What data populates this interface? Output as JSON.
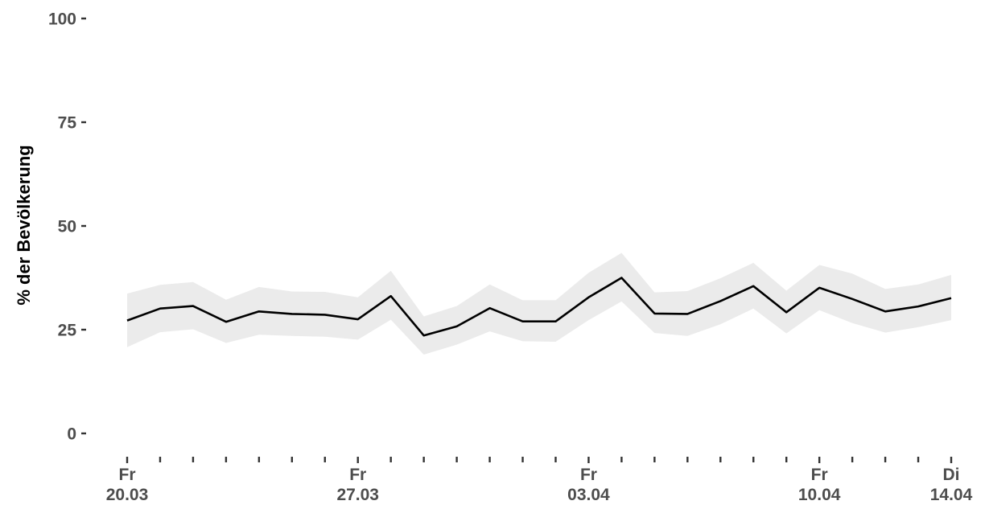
{
  "chart_data": {
    "type": "line",
    "ylabel": "% der Bevölkerung",
    "ylim": [
      0,
      100
    ],
    "y_ticks": [
      "0",
      "25",
      "50",
      "75",
      "100"
    ],
    "x": [
      "20.03",
      "21.03",
      "22.03",
      "23.03",
      "24.03",
      "25.03",
      "26.03",
      "27.03",
      "28.03",
      "29.03",
      "30.03",
      "31.03",
      "01.04",
      "02.04",
      "03.04",
      "04.04",
      "05.04",
      "06.04",
      "07.04",
      "08.04",
      "09.04",
      "10.04",
      "11.04",
      "12.04",
      "13.04",
      "14.04"
    ],
    "x_labels": [
      {
        "day": "Fr",
        "date": "20.03"
      },
      {
        "day": "Fr",
        "date": "27.03"
      },
      {
        "day": "Fr",
        "date": "03.04"
      },
      {
        "day": "Fr",
        "date": "10.04"
      },
      {
        "day": "Di",
        "date": "14.04"
      }
    ],
    "series": [
      {
        "values": [
          27.2,
          30.1,
          30.7,
          26.9,
          29.4,
          28.8,
          28.6,
          27.5,
          33.1,
          23.6,
          25.8,
          30.2,
          27.0,
          27.0,
          32.8,
          37.5,
          28.9,
          28.8,
          31.9,
          35.5,
          29.2,
          35.1,
          32.4,
          29.4,
          30.6,
          32.6
        ],
        "lower": [
          20.8,
          24.4,
          25.1,
          21.8,
          23.8,
          23.5,
          23.3,
          22.6,
          27.4,
          19.0,
          21.4,
          24.6,
          22.2,
          22.1,
          27.3,
          31.8,
          24.2,
          23.5,
          26.3,
          30.1,
          24.1,
          29.7,
          26.6,
          24.3,
          25.6,
          27.3
        ],
        "upper": [
          33.7,
          35.8,
          36.5,
          32.2,
          35.3,
          34.2,
          34.1,
          32.8,
          39.2,
          28.2,
          30.7,
          35.9,
          32.1,
          32.1,
          38.7,
          43.5,
          34.0,
          34.3,
          37.4,
          41.1,
          34.4,
          40.6,
          38.5,
          34.8,
          35.9,
          38.2
        ]
      }
    ],
    "colors": {
      "line": "#000000",
      "band": "#ebebeb",
      "tick_text": "#4d4d4d",
      "tick_mark": "#333333"
    },
    "grid": false,
    "legend": "none"
  }
}
